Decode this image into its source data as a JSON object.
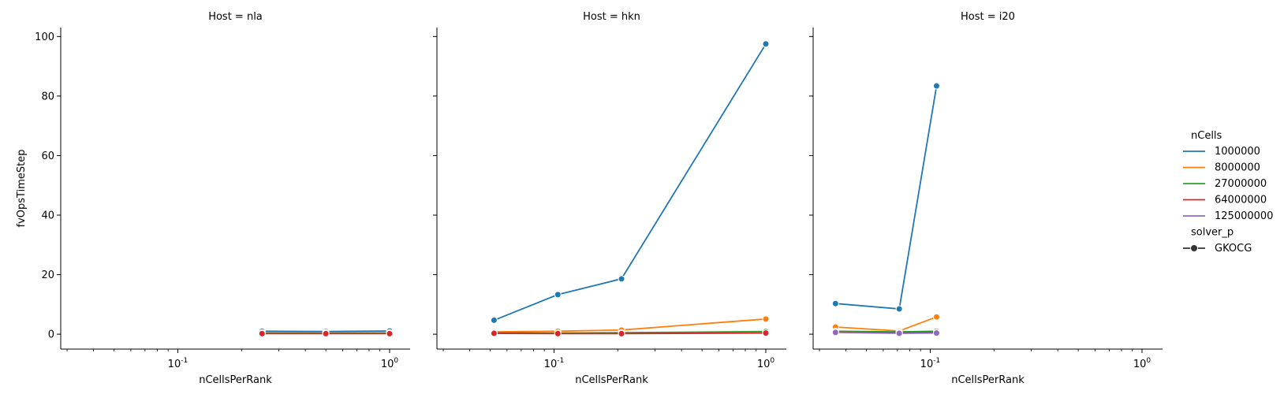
{
  "colors": {
    "1000000": "#1f77b4",
    "8000000": "#ff7f0e",
    "27000000": "#2ca02c",
    "64000000": "#d62728",
    "125000000": "#9467bd"
  },
  "legend": {
    "hue_title": "nCells",
    "style_title": "solver_p",
    "style_entries": [
      "GKOCG"
    ]
  },
  "chart_data": [
    {
      "type": "line",
      "title": "Host = nla",
      "xlabel": "nCellsPerRank",
      "ylabel": "fvOpsTimeStep",
      "xscale": "log",
      "xlim": [
        0.028,
        1.25
      ],
      "ylim": [
        -5,
        103
      ],
      "xtick_labels": [
        "10^-1",
        "10^0"
      ],
      "ytick_labels": [
        "0",
        "20",
        "40",
        "60",
        "80",
        "100"
      ],
      "series": [
        {
          "name": "1000000",
          "x": [
            0.25,
            0.5,
            1.0
          ],
          "y": [
            1.0,
            0.9,
            1.1
          ]
        },
        {
          "name": "8000000",
          "x": [
            0.25,
            0.5,
            1.0
          ],
          "y": [
            0.5,
            0.5,
            0.5
          ]
        },
        {
          "name": "27000000",
          "x": [
            0.25,
            0.5,
            1.0
          ],
          "y": [
            0.3,
            0.3,
            0.3
          ]
        },
        {
          "name": "64000000",
          "x": [
            0.25,
            0.5,
            1.0
          ],
          "y": [
            0.2,
            0.2,
            0.2
          ]
        }
      ]
    },
    {
      "type": "line",
      "title": "Host = hkn",
      "xlabel": "nCellsPerRank",
      "ylabel": "",
      "xscale": "log",
      "xlim": [
        0.028,
        1.25
      ],
      "ylim": [
        -5,
        103
      ],
      "xtick_labels": [
        "10^-1",
        "10^0"
      ],
      "ytick_labels": [],
      "series": [
        {
          "name": "1000000",
          "x": [
            0.0521,
            0.1042,
            0.2083,
            1.0
          ],
          "y": [
            4.7,
            13.3,
            18.6,
            97.5
          ]
        },
        {
          "name": "8000000",
          "x": [
            0.0521,
            0.1042,
            0.2083,
            1.0
          ],
          "y": [
            0.8,
            1.0,
            1.4,
            5.1
          ]
        },
        {
          "name": "27000000",
          "x": [
            0.0521,
            0.1042,
            0.2083,
            1.0
          ],
          "y": [
            0.5,
            0.4,
            0.5,
            0.9
          ]
        },
        {
          "name": "64000000",
          "x": [
            0.0521,
            0.1042,
            0.2083,
            1.0
          ],
          "y": [
            0.3,
            0.2,
            0.2,
            0.4
          ]
        }
      ]
    },
    {
      "type": "line",
      "title": "Host = i20",
      "xlabel": "nCellsPerRank",
      "ylabel": "",
      "xscale": "log",
      "xlim": [
        0.028,
        1.25
      ],
      "ylim": [
        -5,
        103
      ],
      "xtick_labels": [
        "10^-1",
        "10^0"
      ],
      "ytick_labels": [],
      "series": [
        {
          "name": "1000000",
          "x": [
            0.0357,
            0.0714,
            0.1071
          ],
          "y": [
            10.3,
            8.5,
            83.4
          ]
        },
        {
          "name": "8000000",
          "x": [
            0.0357,
            0.0714,
            0.1071
          ],
          "y": [
            2.4,
            1.1,
            5.8
          ]
        },
        {
          "name": "27000000",
          "x": [
            0.0357,
            0.0714,
            0.1071
          ],
          "y": [
            1.0,
            0.8,
            1.0
          ]
        },
        {
          "name": "64000000",
          "x": [
            0.0357,
            0.0714,
            0.1071
          ],
          "y": [
            0.7,
            0.5,
            0.6
          ]
        },
        {
          "name": "125000000",
          "x": [
            0.0357,
            0.0714,
            0.1071
          ],
          "y": [
            0.6,
            0.3,
            0.4
          ]
        }
      ]
    }
  ]
}
